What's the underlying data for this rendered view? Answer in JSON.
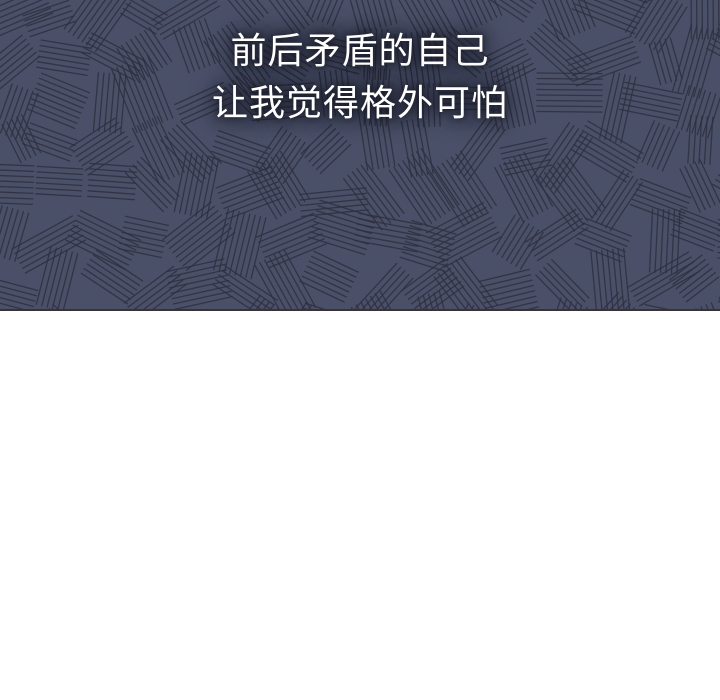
{
  "panel": {
    "caption_lines": [
      "前后矛盾的自己",
      "让我觉得格外可怕"
    ],
    "background_color": "#4a5068",
    "line_color": "#2e3040",
    "border_color": "#3a3236"
  },
  "page_background": "#ffffff"
}
